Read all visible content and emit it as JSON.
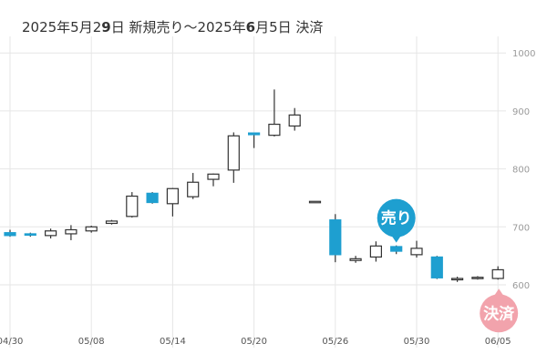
{
  "title": {
    "prefix": "2025年5月2",
    "start_day_digit": "9",
    "mid": "日 新規売り～2025年",
    "end_month": "6",
    "suffix": "月5日 決済"
  },
  "colors": {
    "bullish_fill": "#ffffff",
    "bearish_fill": "#1e9fd0",
    "candle_stroke": "#333333",
    "grid": "#e6e6e6",
    "sell_badge": "#1e9fd0",
    "settle_badge": "#f2a3ac"
  },
  "markers": {
    "sell": {
      "label": "売り",
      "date": "05/29"
    },
    "settle": {
      "label": "決済",
      "date": "06/05"
    }
  },
  "chart_data": {
    "type": "candlestick",
    "ylim": [
      570,
      1000
    ],
    "y_ticks": [
      {
        "value": 1000,
        "label": "1000"
      },
      {
        "value": 900,
        "label": "900"
      },
      {
        "value": 800,
        "label": "800"
      },
      {
        "value": 700,
        "label": "700"
      },
      {
        "value": 600,
        "label": "600"
      }
    ],
    "x_ticks": [
      "04/30",
      "05/08",
      "05/14",
      "05/20",
      "05/26",
      "05/30",
      "06/05"
    ],
    "candles": [
      {
        "date": "04/30",
        "open": 690,
        "high": 695,
        "low": 683,
        "close": 685
      },
      {
        "date": "05/01",
        "open": 688,
        "high": 690,
        "low": 683,
        "close": 686
      },
      {
        "date": "05/02",
        "open": 685,
        "high": 697,
        "low": 680,
        "close": 693
      },
      {
        "date": "05/07",
        "open": 688,
        "high": 703,
        "low": 677,
        "close": 695
      },
      {
        "date": "05/08",
        "open": 693,
        "high": 702,
        "low": 690,
        "close": 700
      },
      {
        "date": "05/09",
        "open": 706,
        "high": 712,
        "low": 704,
        "close": 710
      },
      {
        "date": "05/12",
        "open": 718,
        "high": 760,
        "low": 716,
        "close": 753
      },
      {
        "date": "05/13",
        "open": 758,
        "high": 760,
        "low": 740,
        "close": 742
      },
      {
        "date": "05/14",
        "open": 740,
        "high": 767,
        "low": 718,
        "close": 766
      },
      {
        "date": "05/15",
        "open": 752,
        "high": 793,
        "low": 748,
        "close": 777
      },
      {
        "date": "05/16",
        "open": 782,
        "high": 792,
        "low": 770,
        "close": 791
      },
      {
        "date": "05/19",
        "open": 798,
        "high": 863,
        "low": 776,
        "close": 857
      },
      {
        "date": "05/20",
        "open": 862,
        "high": 862,
        "low": 836,
        "close": 859
      },
      {
        "date": "05/21",
        "open": 858,
        "high": 937,
        "low": 856,
        "close": 877
      },
      {
        "date": "05/22",
        "open": 874,
        "high": 905,
        "low": 866,
        "close": 893
      },
      {
        "date": "05/23",
        "open": 744,
        "high": 744,
        "low": 744,
        "close": 744
      },
      {
        "date": "05/26",
        "open": 712,
        "high": 722,
        "low": 639,
        "close": 652
      },
      {
        "date": "05/27",
        "open": 642,
        "high": 650,
        "low": 638,
        "close": 645
      },
      {
        "date": "05/28",
        "open": 648,
        "high": 675,
        "low": 640,
        "close": 667
      },
      {
        "date": "05/29",
        "open": 666,
        "high": 668,
        "low": 653,
        "close": 658
      },
      {
        "date": "05/30",
        "open": 652,
        "high": 676,
        "low": 647,
        "close": 663
      },
      {
        "date": "06/02",
        "open": 648,
        "high": 650,
        "low": 610,
        "close": 612
      },
      {
        "date": "06/03",
        "open": 609,
        "high": 614,
        "low": 605,
        "close": 611
      },
      {
        "date": "06/04",
        "open": 612,
        "high": 615,
        "low": 609,
        "close": 613
      },
      {
        "date": "06/05",
        "open": 611,
        "high": 632,
        "low": 609,
        "close": 626
      }
    ]
  }
}
